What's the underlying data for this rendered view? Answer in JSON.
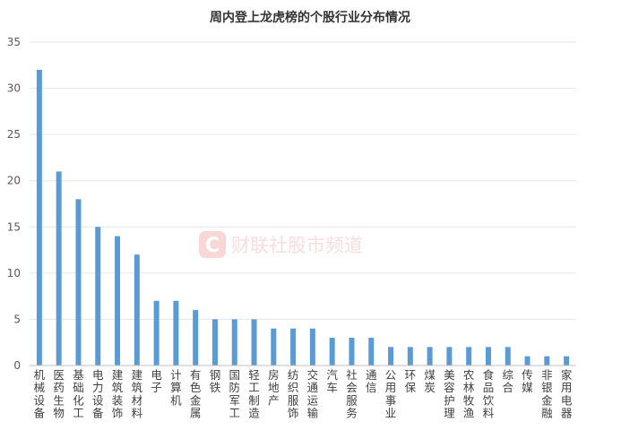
{
  "chart_data": {
    "type": "bar",
    "title": "周内登上龙虎榜的个股行业分布情况",
    "xlabel": "",
    "ylabel": "",
    "ylim": [
      0,
      35
    ],
    "yticks": [
      0,
      5,
      10,
      15,
      20,
      25,
      30,
      35
    ],
    "grid": true,
    "legend": "none",
    "bar_color": "#5b9bd5",
    "categories": [
      "机械设备",
      "医药生物",
      "基础化工",
      "电力设备",
      "建筑装饰",
      "建筑材料",
      "电子",
      "计算机",
      "有色金属",
      "钢铁",
      "国防军工",
      "轻工制造",
      "房地产",
      "纺织服饰",
      "交通运输",
      "汽车",
      "社会服务",
      "通信",
      "公用事业",
      "环保",
      "煤炭",
      "美容护理",
      "农林牧渔",
      "食品饮料",
      "综合",
      "传媒",
      "非银金融",
      "家用电器"
    ],
    "values": [
      32,
      21,
      18,
      15,
      14,
      12,
      7,
      7,
      6,
      5,
      5,
      5,
      4,
      4,
      4,
      3,
      3,
      3,
      2,
      2,
      2,
      2,
      2,
      2,
      2,
      1,
      1,
      1
    ]
  },
  "watermark": {
    "logo_letter": "C",
    "text": "财联社股市频道",
    "color": "#e8312f"
  }
}
